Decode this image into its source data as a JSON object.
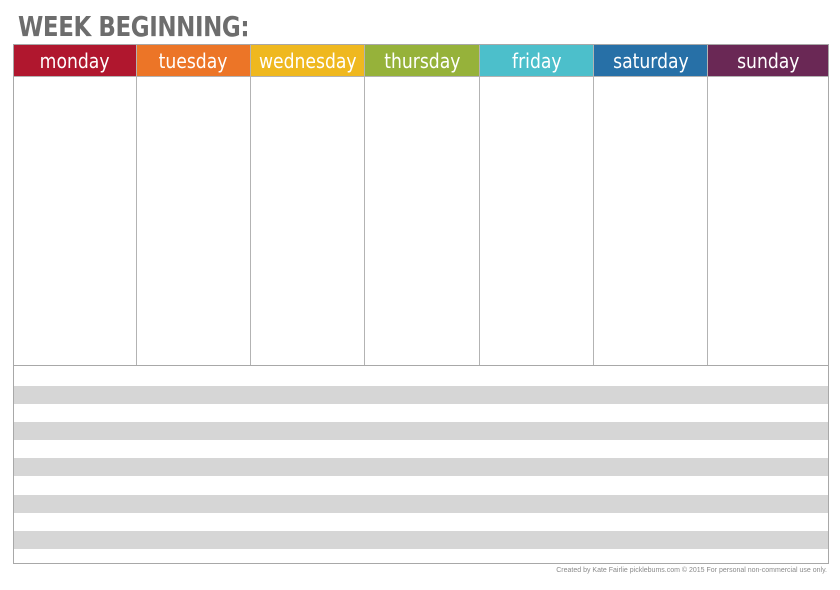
{
  "title": "WEEK BEGINNING:",
  "days": [
    {
      "label": "monday",
      "color": "#b0172e"
    },
    {
      "label": "tuesday",
      "color": "#ec7527"
    },
    {
      "label": "wednesday",
      "color": "#efb81f"
    },
    {
      "label": "thursday",
      "color": "#96b23a"
    },
    {
      "label": "friday",
      "color": "#4cbfcb"
    },
    {
      "label": "saturday",
      "color": "#2770a7"
    },
    {
      "label": "sunday",
      "color": "#6a2855"
    }
  ],
  "stripe_color": "#d6d6d6",
  "footer": "Created by Kate Fairlie picklebums.com © 2015  For personal non-commercial use only."
}
